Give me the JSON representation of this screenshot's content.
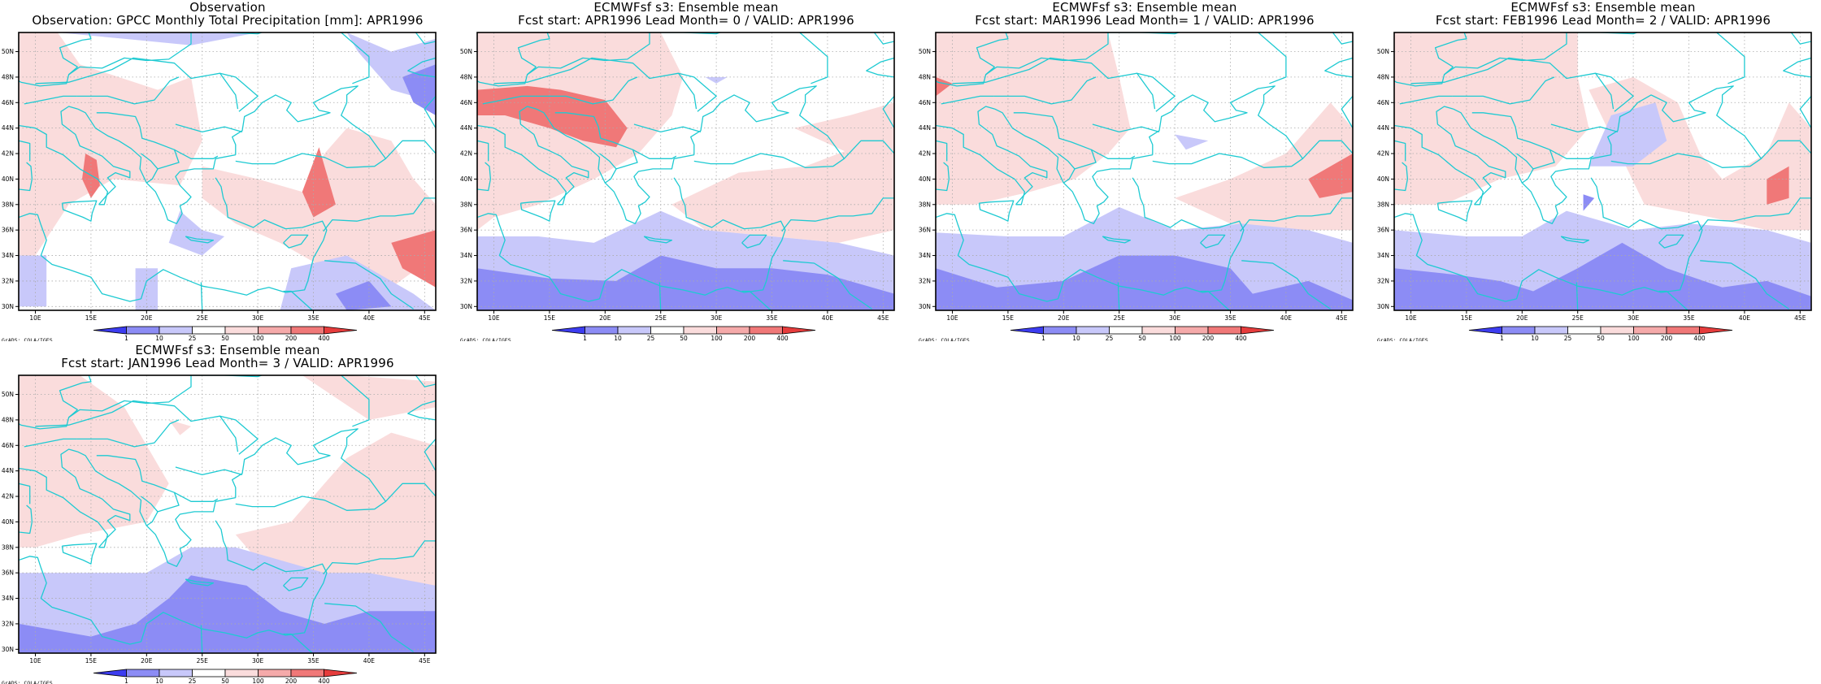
{
  "colorbar": {
    "labels": [
      "1",
      "10",
      "25",
      "50",
      "100",
      "200",
      "400"
    ],
    "colors": [
      "#3c3cf0",
      "#8c8cf5",
      "#c8c8fa",
      "#ffffff",
      "#fadcdc",
      "#f5aaaa",
      "#f07878",
      "#e63c3c"
    ]
  },
  "axes": {
    "lon_labels": [
      "10E",
      "15E",
      "20E",
      "25E",
      "30E",
      "35E",
      "40E",
      "45E"
    ],
    "lat_labels": [
      "30N",
      "32N",
      "34N",
      "36N",
      "38N",
      "40N",
      "42N",
      "44N",
      "46N",
      "48N",
      "50N"
    ],
    "lon_range": [
      8.5,
      46
    ],
    "lat_range": [
      29.7,
      51.5
    ]
  },
  "credit": "GrADS: COLA/IGES",
  "panels": [
    {
      "title1": "Observation",
      "title2": "Observation: GPCC Monthly Total Precipitation [mm]: APR1996"
    },
    {
      "title1": "ECMWFsf s3: Ensemble mean",
      "title2": "Fcst start: APR1996  Lead Month= 0 / VALID: APR1996"
    },
    {
      "title1": "ECMWFsf s3: Ensemble mean",
      "title2": "Fcst start: MAR1996  Lead Month= 1 / VALID: APR1996"
    },
    {
      "title1": "ECMWFsf s3: Ensemble mean",
      "title2": "Fcst start: FEB1996  Lead Month= 2 / VALID: APR1996"
    },
    {
      "title1": "ECMWFsf s3: Ensemble mean",
      "title2": "Fcst start: JAN1996  Lead Month= 3 / VALID: APR1996"
    }
  ]
}
